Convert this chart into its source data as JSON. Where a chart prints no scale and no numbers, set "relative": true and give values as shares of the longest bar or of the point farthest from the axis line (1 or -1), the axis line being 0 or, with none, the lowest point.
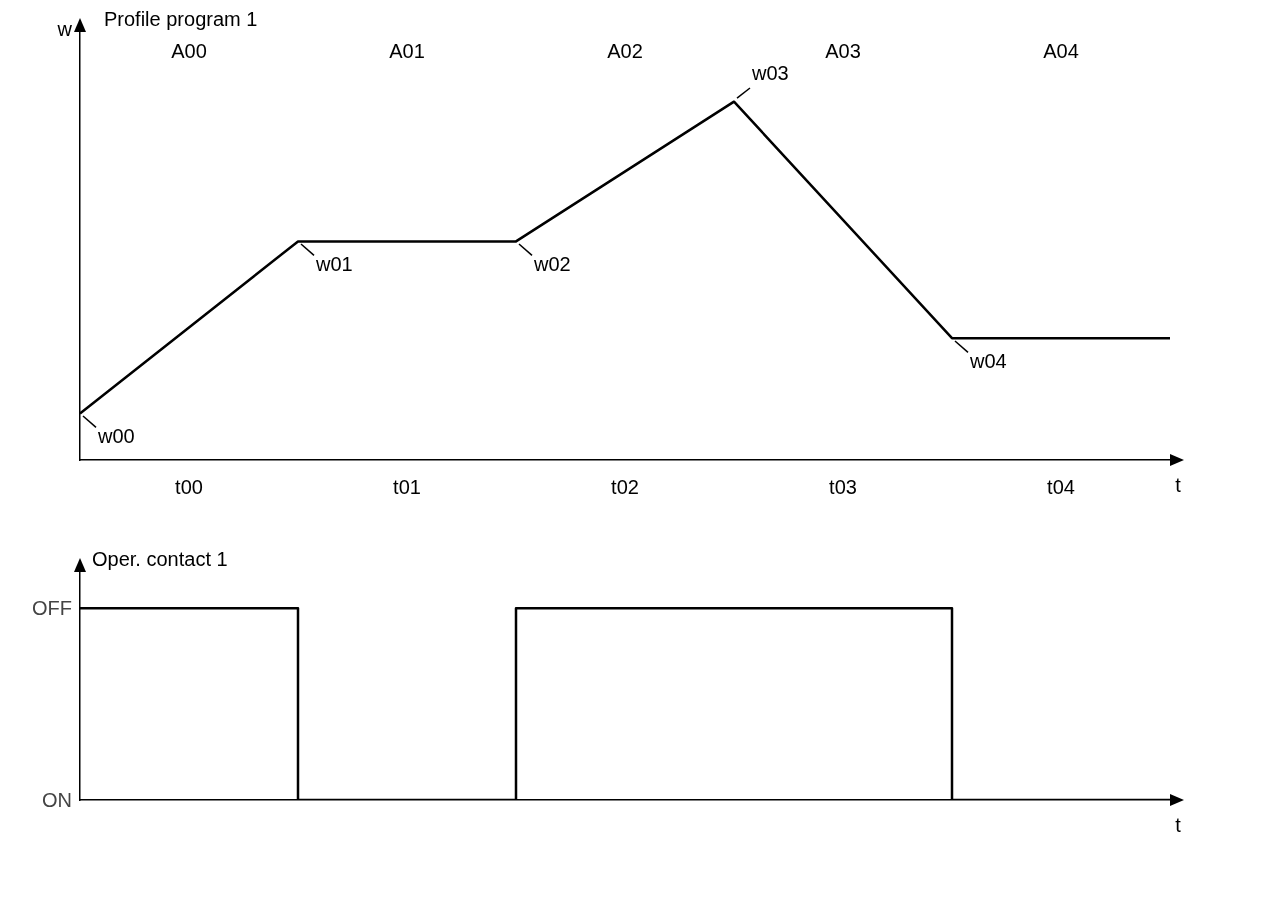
{
  "chart_data": [
    {
      "type": "line",
      "title": "Profile program 1",
      "ylabel": "w",
      "xlabel": "t",
      "categories": [
        null,
        null,
        null,
        null,
        null,
        null
      ],
      "series": [
        {
          "color": "#000000",
          "values": [
            0.13,
            0.61,
            0.61,
            1,
            0.34,
            0.34
          ]
        }
      ],
      "relative": true,
      "grid": false,
      "legend": false,
      "marker": "none",
      "line_style": "solid",
      "annotations": [
        "w00",
        "w01",
        "w02",
        "w03",
        "w04",
        "A00",
        "A01",
        "A02",
        "A03",
        "A04",
        "t00",
        "t01",
        "t02",
        "t03",
        "t04"
      ]
    },
    {
      "type": "step",
      "ylabel": "Oper. contact 1",
      "xlabel": "t",
      "categories": [
        null,
        null,
        null,
        null,
        null,
        null
      ],
      "series": [
        {
          "color": "#000000",
          "values": [
            1,
            0,
            1,
            1,
            0,
            0
          ]
        }
      ],
      "relative": true,
      "annotations": [
        "OFF",
        "ON"
      ],
      "grid": false,
      "legend": false,
      "marker": "none",
      "line_style": "solid"
    }
  ]
}
